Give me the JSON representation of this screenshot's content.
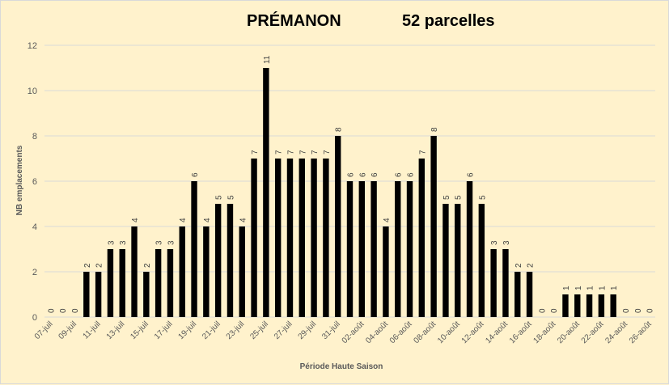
{
  "chart_data": {
    "type": "bar",
    "title": "PRÉMANON",
    "subtitle": "52 parcelles",
    "xlabel": "Période Haute Saison",
    "ylabel": "NB emplacements",
    "ylim": [
      0,
      12
    ],
    "yticks": [
      0,
      2,
      4,
      6,
      8,
      10,
      12
    ],
    "grid": true,
    "bar_color": "#000000",
    "categories": [
      "07-juil",
      "08-juil",
      "09-juil",
      "10-juil",
      "11-juil",
      "12-juil",
      "13-juil",
      "14-juil",
      "15-juil",
      "16-juil",
      "17-juil",
      "18-juil",
      "19-juil",
      "20-juil",
      "21-juil",
      "22-juil",
      "23-juil",
      "24-juil",
      "25-juil",
      "26-juil",
      "27-juil",
      "28-juil",
      "29-juil",
      "30-juil",
      "31-juil",
      "01-août",
      "02-août",
      "03-août",
      "04-août",
      "05-août",
      "06-août",
      "07-août",
      "08-août",
      "09-août",
      "10-août",
      "11-août",
      "12-août",
      "13-août",
      "14-août",
      "15-août",
      "16-août",
      "17-août",
      "18-août",
      "19-août",
      "20-août",
      "21-août",
      "22-août",
      "23-août",
      "24-août",
      "25-août",
      "26-août"
    ],
    "tick_labels": [
      "07-juil",
      "",
      "09-juil",
      "",
      "11-juil",
      "",
      "13-juil",
      "",
      "15-juil",
      "",
      "17-juil",
      "",
      "19-juil",
      "",
      "21-juil",
      "",
      "23-juil",
      "",
      "25-juil",
      "",
      "27-juil",
      "",
      "29-juil",
      "",
      "31-juil",
      "",
      "02-août",
      "",
      "04-août",
      "",
      "06-août",
      "",
      "08-août",
      "",
      "10-août",
      "",
      "12-août",
      "",
      "14-août",
      "",
      "16-août",
      "",
      "18-août",
      "",
      "20-août",
      "",
      "22-août",
      "",
      "24-août",
      "",
      "26-août"
    ],
    "values": [
      0,
      0,
      0,
      2,
      2,
      3,
      3,
      4,
      2,
      3,
      3,
      4,
      6,
      4,
      5,
      5,
      4,
      7,
      11,
      7,
      7,
      7,
      7,
      7,
      8,
      6,
      6,
      6,
      4,
      6,
      6,
      7,
      8,
      5,
      5,
      6,
      5,
      3,
      3,
      2,
      2,
      0,
      0,
      1,
      1,
      1,
      1,
      1,
      0,
      0,
      0
    ]
  }
}
